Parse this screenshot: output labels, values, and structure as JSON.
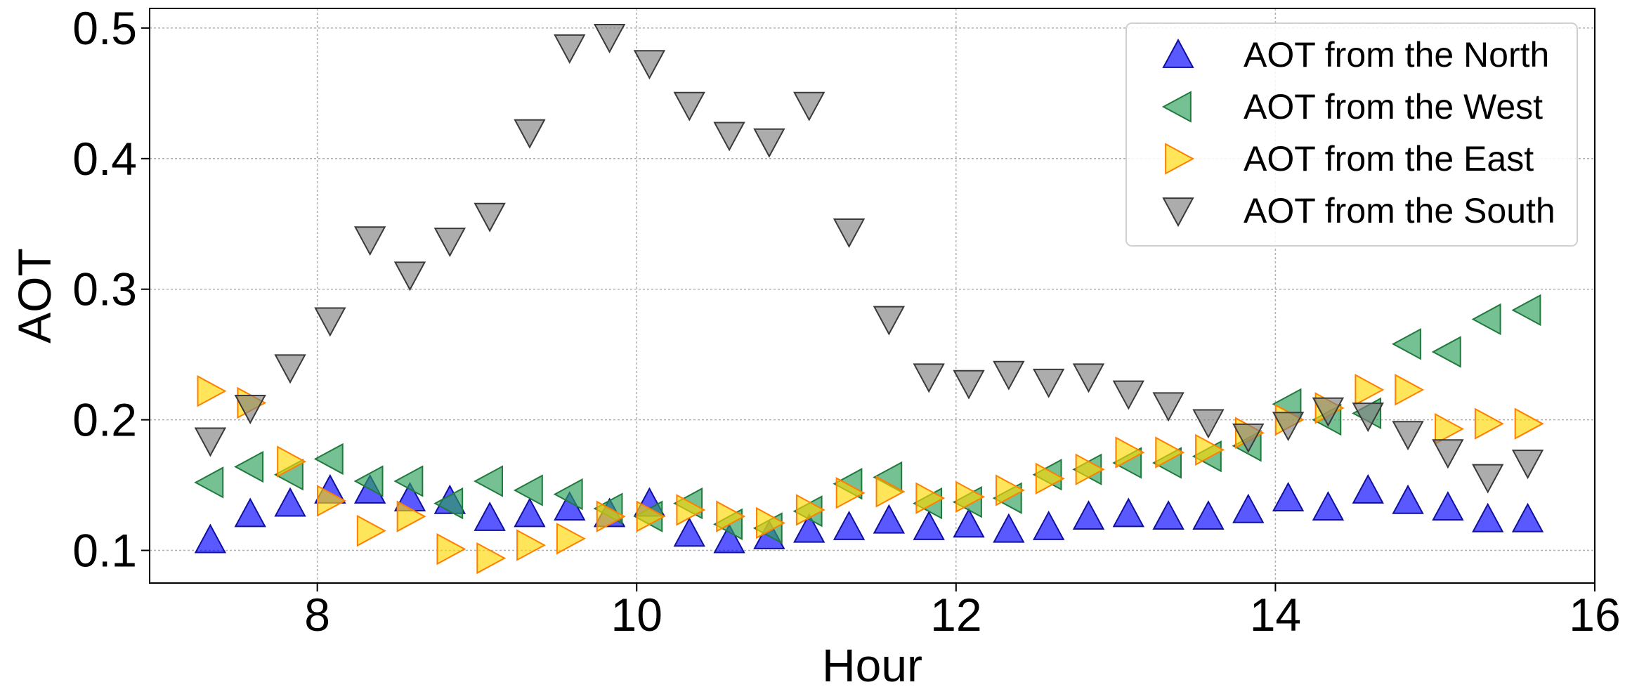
{
  "chart_data": {
    "type": "scatter",
    "xlabel": "Hour",
    "ylabel": "AOT",
    "xlim": [
      6.95,
      16.0
    ],
    "ylim": [
      0.075,
      0.515
    ],
    "xticks": [
      8,
      10,
      12,
      14,
      16
    ],
    "yticks": [
      0.1,
      0.2,
      0.3,
      0.4,
      0.5
    ],
    "xtick_labels": [
      "8",
      "10",
      "12",
      "14",
      "16"
    ],
    "ytick_labels": [
      "0.1",
      "0.2",
      "0.3",
      "0.4",
      "0.5"
    ],
    "grid": true,
    "legend_position": "top-right",
    "x": [
      7.33,
      7.58,
      7.83,
      8.08,
      8.33,
      8.58,
      8.83,
      9.08,
      9.33,
      9.58,
      9.83,
      10.08,
      10.33,
      10.58,
      10.83,
      11.08,
      11.33,
      11.58,
      11.83,
      12.08,
      12.33,
      12.58,
      12.83,
      13.08,
      13.33,
      13.58,
      13.83,
      14.08,
      14.33,
      14.58,
      14.83,
      15.08,
      15.33,
      15.58
    ],
    "series": [
      {
        "name": "AOT from the North",
        "marker": "triangle-up",
        "color": "#0000ff",
        "values": [
          0.108,
          0.128,
          0.136,
          0.146,
          0.146,
          0.14,
          0.138,
          0.125,
          0.128,
          0.133,
          0.128,
          0.136,
          0.113,
          0.108,
          0.111,
          0.116,
          0.118,
          0.123,
          0.118,
          0.12,
          0.116,
          0.118,
          0.126,
          0.128,
          0.126,
          0.126,
          0.131,
          0.14,
          0.133,
          0.146,
          0.138,
          0.133,
          0.124,
          0.124
        ]
      },
      {
        "name": "AOT from the West",
        "marker": "triangle-left",
        "color": "#2ca05a",
        "values": [
          0.152,
          0.164,
          0.158,
          0.17,
          0.153,
          0.153,
          0.136,
          0.153,
          0.146,
          0.143,
          0.132,
          0.126,
          0.136,
          0.12,
          0.117,
          0.13,
          0.151,
          0.156,
          0.136,
          0.137,
          0.14,
          0.158,
          0.162,
          0.167,
          0.167,
          0.172,
          0.18,
          0.212,
          0.2,
          0.205,
          0.258,
          0.252,
          0.277,
          0.284
        ]
      },
      {
        "name": "AOT from the East",
        "marker": "triangle-right",
        "color": "#ffd700",
        "values": [
          0.222,
          0.213,
          0.168,
          0.138,
          0.115,
          0.126,
          0.101,
          0.094,
          0.104,
          0.109,
          0.126,
          0.126,
          0.131,
          0.126,
          0.121,
          0.131,
          0.144,
          0.145,
          0.14,
          0.141,
          0.146,
          0.155,
          0.162,
          0.175,
          0.175,
          0.177,
          0.19,
          0.2,
          0.209,
          0.223,
          0.223,
          0.193,
          0.197,
          0.197
        ]
      },
      {
        "name": "AOT from the South",
        "marker": "triangle-down",
        "color": "#808080",
        "values": [
          0.184,
          0.209,
          0.24,
          0.276,
          0.338,
          0.311,
          0.337,
          0.356,
          0.42,
          0.485,
          0.493,
          0.473,
          0.441,
          0.418,
          0.413,
          0.441,
          0.344,
          0.277,
          0.233,
          0.228,
          0.235,
          0.229,
          0.233,
          0.22,
          0.211,
          0.198,
          0.187,
          0.196,
          0.207,
          0.203,
          0.189,
          0.175,
          0.156,
          0.167
        ]
      }
    ]
  }
}
